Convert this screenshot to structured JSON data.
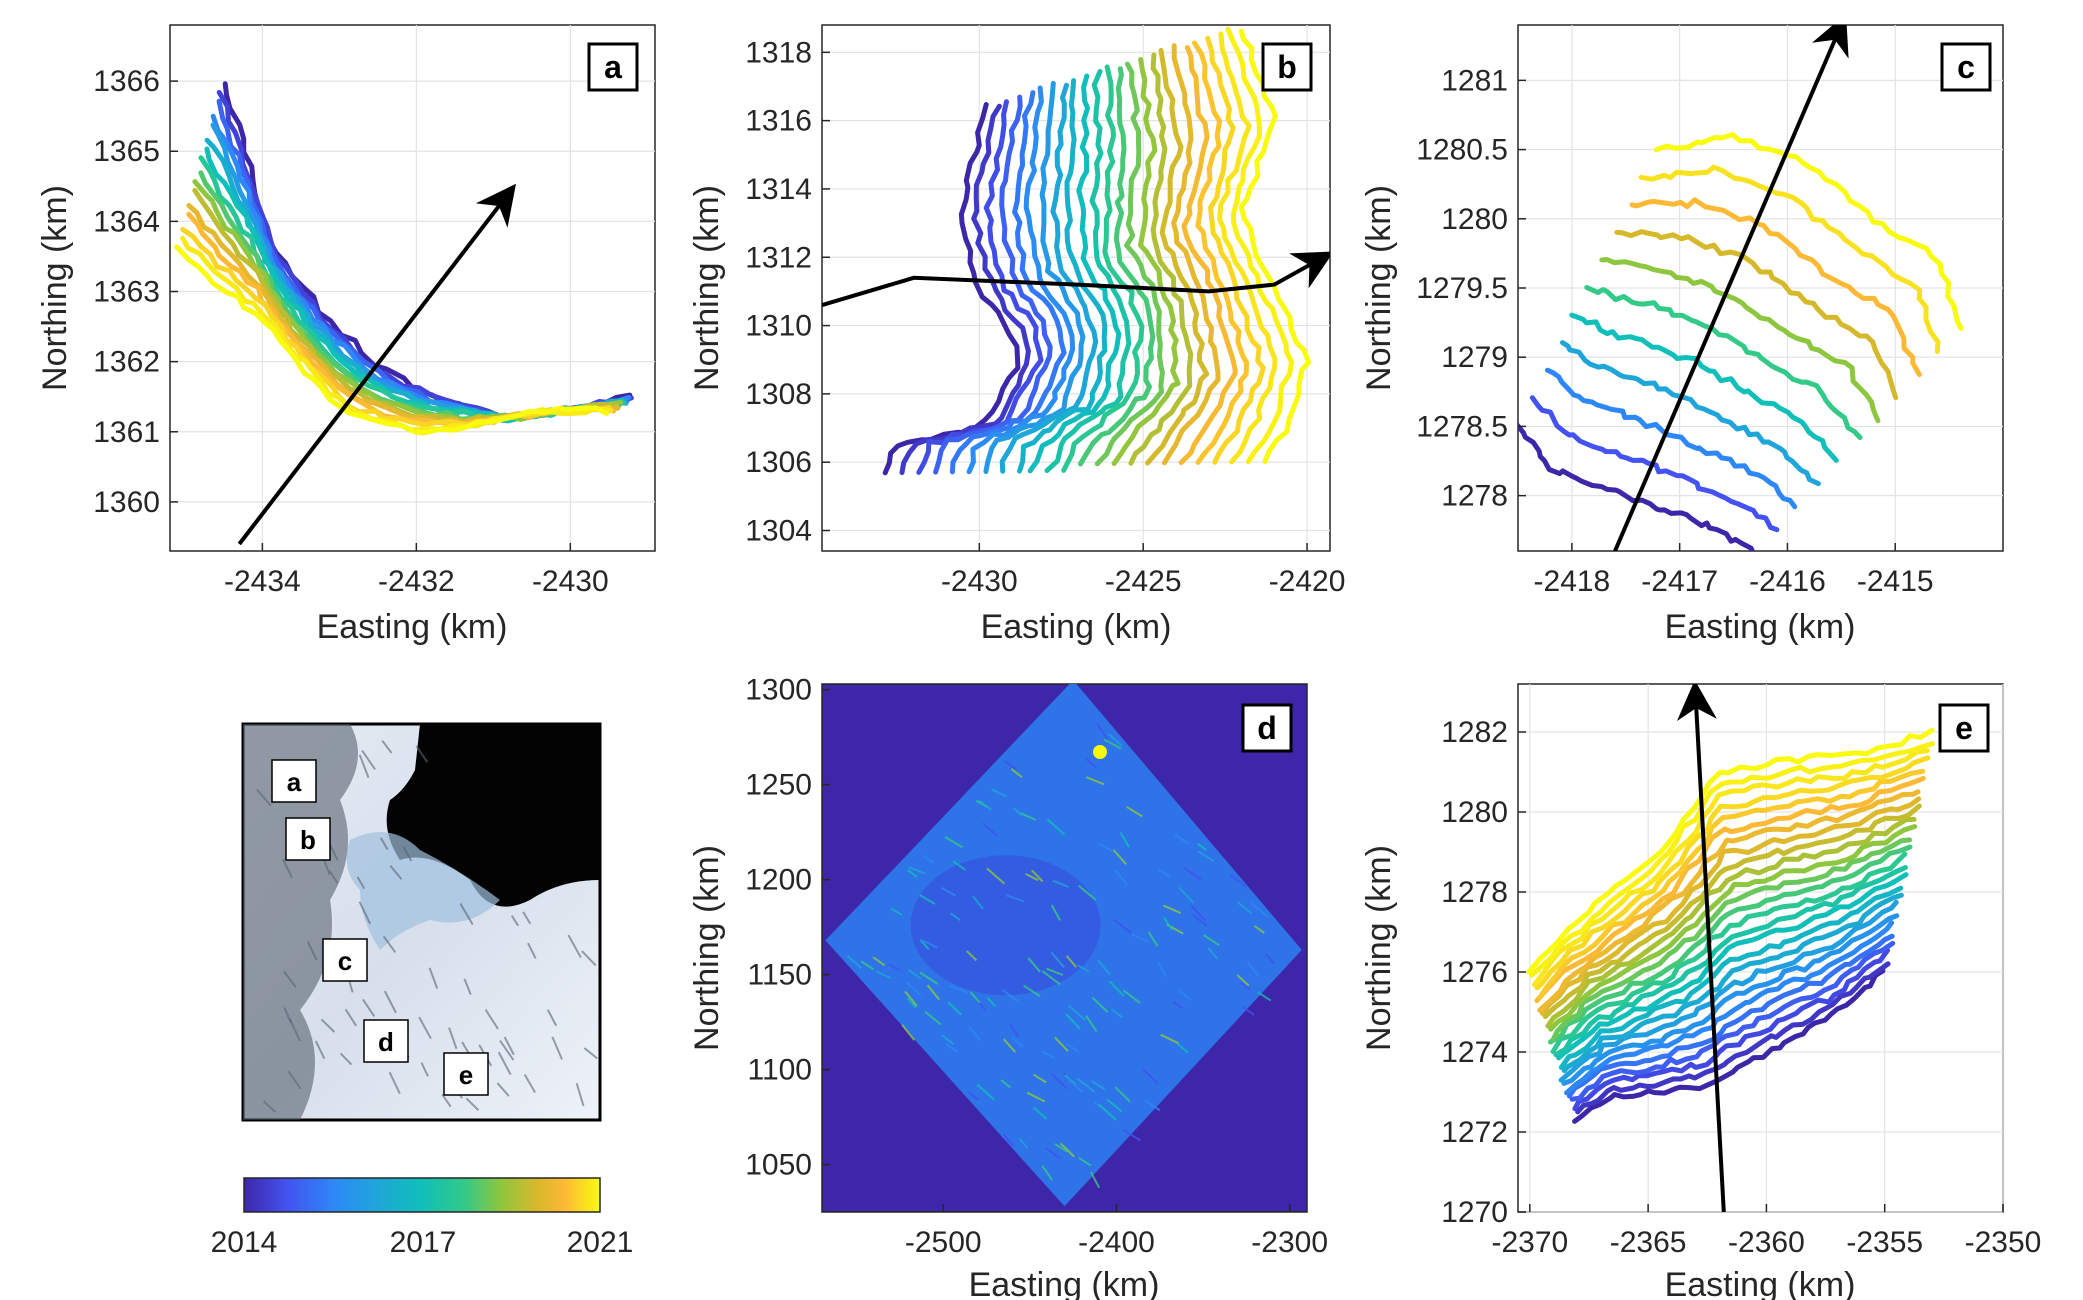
{
  "colors": {
    "colormap": [
      "#3e26a8",
      "#4352f0",
      "#2e87f7",
      "#1fa5d9",
      "#10bfb9",
      "#33c988",
      "#8dc63f",
      "#d6b82b",
      "#fcb935",
      "#f8e21f",
      "#f9fb0e"
    ],
    "background_d": "#3e26a8",
    "arrow": "#000000"
  },
  "chart_data": [
    {
      "id": "a",
      "type": "line",
      "panel_label": "a",
      "xlabel": "Easting (km)",
      "ylabel": "Northing (km)",
      "xlim": [
        -2435.2,
        -2428.9
      ],
      "ylim": [
        1359.3,
        1366.8
      ],
      "xticks": [
        -2434,
        -2432,
        -2430
      ],
      "yticks": [
        1360,
        1361,
        1362,
        1363,
        1364,
        1365,
        1366
      ],
      "arrow": [
        [
          -2434.3,
          1359.4
        ],
        [
          -2430.8,
          1364.4
        ]
      ],
      "base_curve": [
        [
          -2434.5,
          1366.0
        ],
        [
          -2434.3,
          1365.3
        ],
        [
          -2434.1,
          1364.5
        ],
        [
          -2433.9,
          1363.7
        ],
        [
          -2433.3,
          1362.8
        ],
        [
          -2432.6,
          1362.0
        ],
        [
          -2431.8,
          1361.5
        ],
        [
          -2430.8,
          1361.2
        ],
        [
          -2430.0,
          1361.3
        ],
        [
          -2429.2,
          1361.5
        ]
      ],
      "target_curve": [
        [
          -2435.1,
          1363.6
        ],
        [
          -2434.6,
          1363.1
        ],
        [
          -2434.0,
          1362.6
        ],
        [
          -2433.4,
          1361.8
        ],
        [
          -2432.8,
          1361.2
        ],
        [
          -2432.0,
          1361.0
        ],
        [
          -2431.2,
          1361.1
        ],
        [
          -2430.3,
          1361.3
        ],
        [
          -2429.5,
          1361.3
        ]
      ],
      "n_lines": 16
    },
    {
      "id": "b",
      "type": "line",
      "panel_label": "b",
      "xlabel": "Easting (km)",
      "ylabel": "Northing (km)",
      "xlim": [
        -2434.8,
        -2419.3
      ],
      "ylim": [
        1303.4,
        1318.8
      ],
      "xticks": [
        -2430,
        -2425,
        -2420
      ],
      "yticks": [
        1304,
        1306,
        1308,
        1310,
        1312,
        1314,
        1316,
        1318
      ],
      "arrow": [
        [
          -2434.8,
          1310.6
        ],
        [
          -2432.0,
          1311.4
        ],
        [
          -2427.0,
          1311.2
        ],
        [
          -2423.0,
          1311.0
        ],
        [
          -2421.0,
          1311.2
        ],
        [
          -2419.5,
          1312.0
        ]
      ],
      "base_curve": [
        [
          -2429.8,
          1316.4
        ],
        [
          -2430.6,
          1313.2
        ],
        [
          -2430.0,
          1311.0
        ],
        [
          -2429.0,
          1309.8
        ],
        [
          -2428.8,
          1308.8
        ],
        [
          -2430.0,
          1307.0
        ],
        [
          -2432.6,
          1306.5
        ],
        [
          -2432.9,
          1305.6
        ]
      ],
      "target_curve": [
        [
          -2422.0,
          1318.7
        ],
        [
          -2421.0,
          1316.0
        ],
        [
          -2422.0,
          1313.3
        ],
        [
          -2421.0,
          1311.0
        ],
        [
          -2420.0,
          1309.0
        ],
        [
          -2420.6,
          1307.0
        ],
        [
          -2421.3,
          1306.1
        ]
      ],
      "n_lines": 24
    },
    {
      "id": "c",
      "type": "line",
      "panel_label": "c",
      "xlabel": "Easting (km)",
      "ylabel": "Northing (km)",
      "xlim": [
        -2418.5,
        -2414.0
      ],
      "ylim": [
        1277.6,
        1281.4
      ],
      "xticks": [
        -2418,
        -2417,
        -2416,
        -2415
      ],
      "yticks": [
        1278,
        1278.5,
        1279,
        1279.5,
        1280,
        1280.5,
        1281
      ],
      "arrow": [
        [
          -2417.6,
          1277.6
        ],
        [
          -2415.5,
          1281.4
        ]
      ],
      "base_curve": [
        [
          -2418.5,
          1278.5
        ],
        [
          -2418.2,
          1278.2
        ],
        [
          -2417.5,
          1278.0
        ],
        [
          -2416.8,
          1277.8
        ],
        [
          -2416.3,
          1277.6
        ]
      ],
      "target_curve": [
        [
          -2417.2,
          1280.5
        ],
        [
          -2416.5,
          1280.6
        ],
        [
          -2415.8,
          1280.4
        ],
        [
          -2415.2,
          1280.0
        ],
        [
          -2414.6,
          1279.7
        ],
        [
          -2414.4,
          1279.2
        ]
      ],
      "n_lines": 11
    },
    {
      "id": "d",
      "type": "heatmap",
      "panel_label": "d",
      "xlabel": "Easting (km)",
      "ylabel": "Northing (km)",
      "xlim": [
        -2570,
        -2290
      ],
      "ylim": [
        1025,
        1303
      ],
      "xticks": [
        -2500,
        -2400,
        -2300
      ],
      "yticks": [
        1050,
        1100,
        1150,
        1200,
        1250,
        1300
      ],
      "diamond": [
        [
          -2425,
          1305
        ],
        [
          -2293,
          1163
        ],
        [
          -2430,
          1028
        ],
        [
          -2568,
          1168
        ]
      ]
    },
    {
      "id": "e",
      "type": "line",
      "panel_label": "e",
      "xlabel": "Easting (km)",
      "ylabel": "Northing (km)",
      "xlim": [
        -2370.5,
        -2350
      ],
      "ylim": [
        1270,
        1283.2
      ],
      "xticks": [
        -2370,
        -2365,
        -2360,
        -2355,
        -2350
      ],
      "yticks": [
        1270,
        1272,
        1274,
        1276,
        1278,
        1280,
        1282
      ],
      "arrow": [
        [
          -2361.8,
          1270.0
        ],
        [
          -2363.0,
          1283.0
        ]
      ],
      "base_curve": [
        [
          -2368.0,
          1272.3
        ],
        [
          -2366.5,
          1272.9
        ],
        [
          -2364.5,
          1273.0
        ],
        [
          -2362.5,
          1273.2
        ],
        [
          -2360.0,
          1274.0
        ],
        [
          -2357.5,
          1274.8
        ],
        [
          -2355.0,
          1276.0
        ]
      ],
      "target_curve": [
        [
          -2370.0,
          1276.0
        ],
        [
          -2368.5,
          1277.0
        ],
        [
          -2366.5,
          1278.0
        ],
        [
          -2364.5,
          1279.0
        ],
        [
          -2362.0,
          1281.0
        ],
        [
          -2359.0,
          1281.3
        ],
        [
          -2356.0,
          1281.5
        ],
        [
          -2353.0,
          1282.0
        ]
      ],
      "n_lines": 26
    }
  ],
  "map": {
    "labels": [
      "a",
      "b",
      "c",
      "d",
      "e"
    ]
  },
  "colorbar": {
    "tick_labels": [
      "2014",
      "2017",
      "2021"
    ]
  }
}
